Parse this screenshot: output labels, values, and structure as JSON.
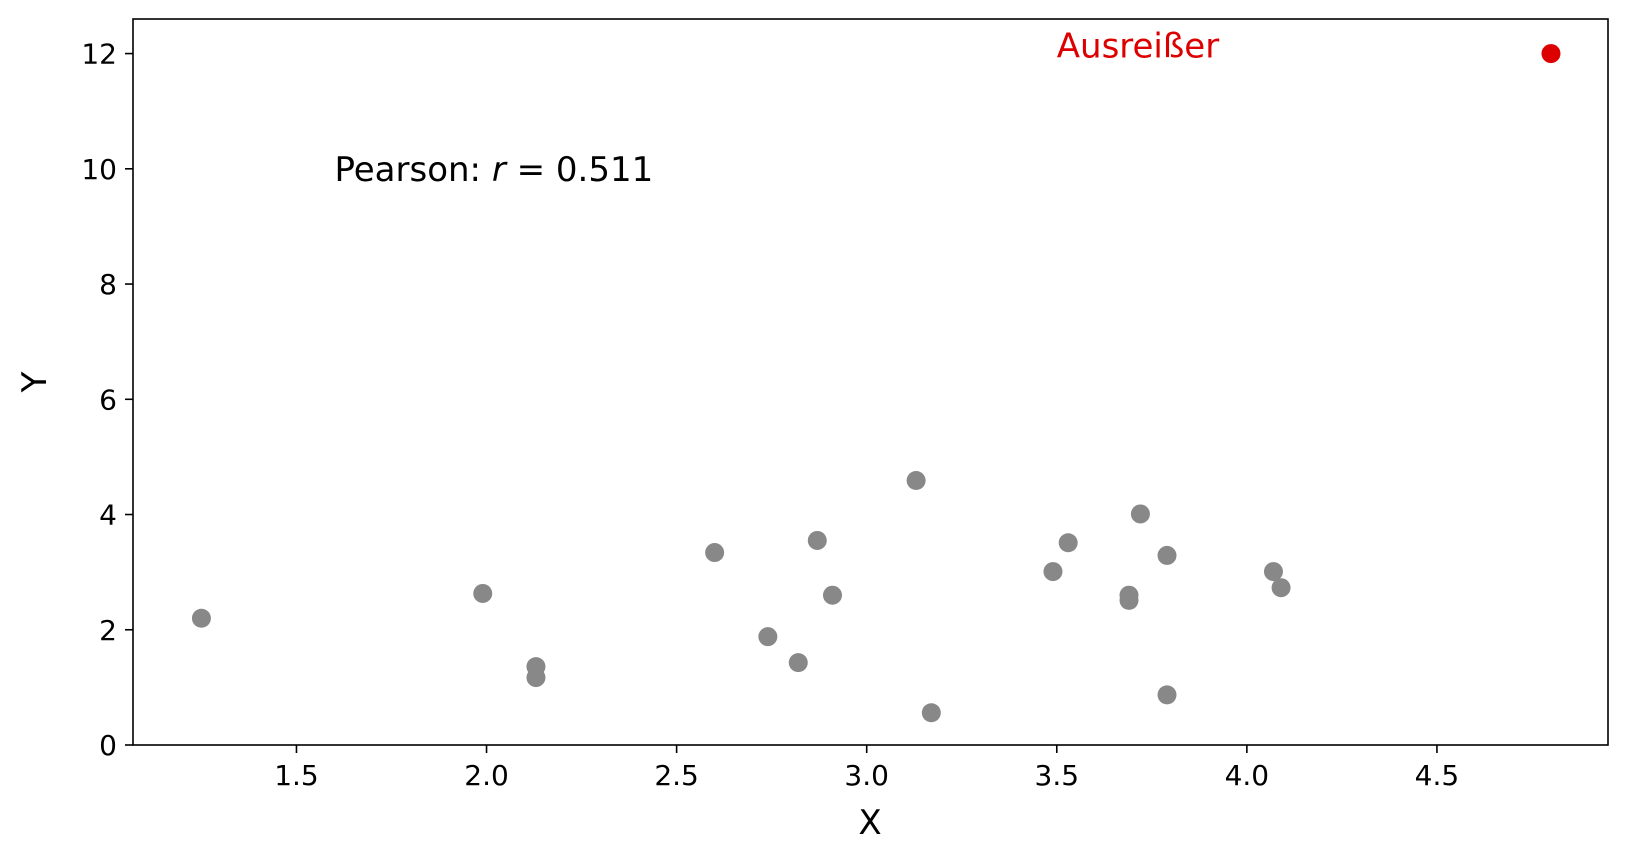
{
  "chart_data": {
    "type": "scatter",
    "xlabel": "X",
    "ylabel": "Y",
    "xlim": [
      1.07,
      4.95
    ],
    "ylim": [
      0,
      12.6
    ],
    "x_ticks": [
      1.5,
      2.0,
      2.5,
      3.0,
      3.5,
      4.0,
      4.5
    ],
    "x_tick_labels": [
      "1.5",
      "2.0",
      "2.5",
      "3.0",
      "3.5",
      "4.0",
      "4.5"
    ],
    "y_ticks": [
      0,
      2,
      4,
      6,
      8,
      10,
      12
    ],
    "y_tick_labels": [
      "0",
      "2",
      "4",
      "6",
      "8",
      "10",
      "12"
    ],
    "grid": false,
    "series": [
      {
        "color": "#888888",
        "points": [
          {
            "x": 1.25,
            "y": 2.2
          },
          {
            "x": 1.99,
            "y": 2.63
          },
          {
            "x": 2.13,
            "y": 1.36
          },
          {
            "x": 2.13,
            "y": 1.17
          },
          {
            "x": 2.6,
            "y": 3.34
          },
          {
            "x": 2.74,
            "y": 1.88
          },
          {
            "x": 2.82,
            "y": 1.43
          },
          {
            "x": 2.87,
            "y": 3.55
          },
          {
            "x": 2.91,
            "y": 2.6
          },
          {
            "x": 3.13,
            "y": 4.59
          },
          {
            "x": 3.17,
            "y": 0.56
          },
          {
            "x": 3.49,
            "y": 3.01
          },
          {
            "x": 3.53,
            "y": 3.51
          },
          {
            "x": 3.69,
            "y": 2.6
          },
          {
            "x": 3.69,
            "y": 2.51
          },
          {
            "x": 3.72,
            "y": 4.01
          },
          {
            "x": 3.79,
            "y": 3.29
          },
          {
            "x": 3.79,
            "y": 0.87
          },
          {
            "x": 4.07,
            "y": 3.01
          },
          {
            "x": 4.09,
            "y": 2.73
          }
        ]
      },
      {
        "color": "#dd0000",
        "points": [
          {
            "x": 4.8,
            "y": 12.0
          }
        ]
      }
    ],
    "annotations": [
      {
        "text_prefix": "Pearson: ",
        "text_var": "r",
        "text_suffix": " = 0.511",
        "x": 1.6,
        "y": 10.0,
        "color": "#000000"
      },
      {
        "text": "Ausreißer",
        "x": 3.5,
        "y": 12.0,
        "color": "#dd0000"
      }
    ]
  }
}
